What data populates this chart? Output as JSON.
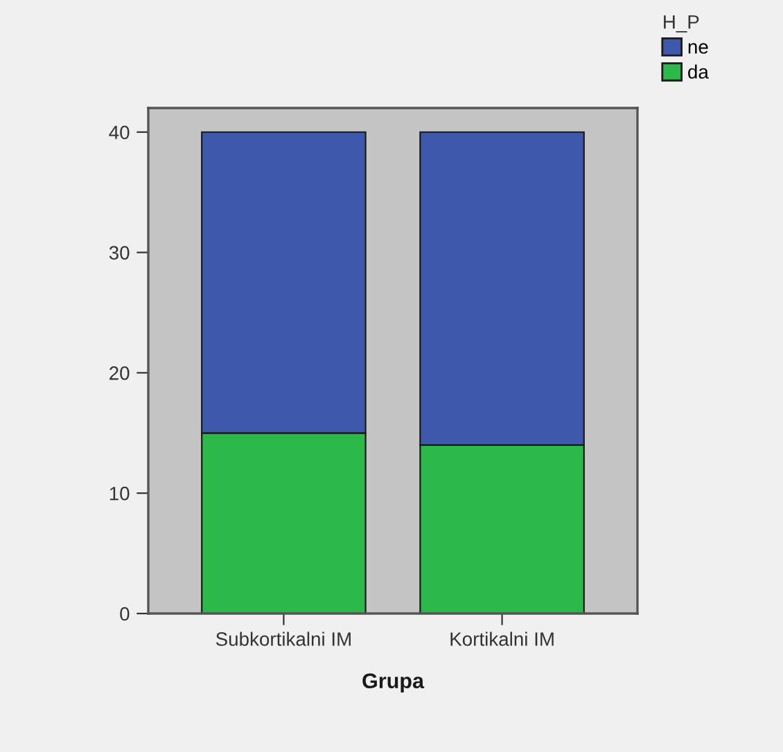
{
  "chart_data": {
    "type": "bar",
    "stacked": true,
    "xlabel": "Grupa",
    "legend_title": "H_P",
    "legend": "top right",
    "categories": [
      "Subkortikalni IM",
      "Kortikalni IM"
    ],
    "series": [
      {
        "name": "da",
        "color": "#2db84a",
        "values": [
          15,
          14
        ]
      },
      {
        "name": "ne",
        "color": "#3e58ac",
        "values": [
          25,
          26
        ]
      }
    ],
    "ylim": [
      0,
      42
    ],
    "yticks": [
      0,
      10,
      20,
      30,
      40
    ],
    "grid": false
  }
}
